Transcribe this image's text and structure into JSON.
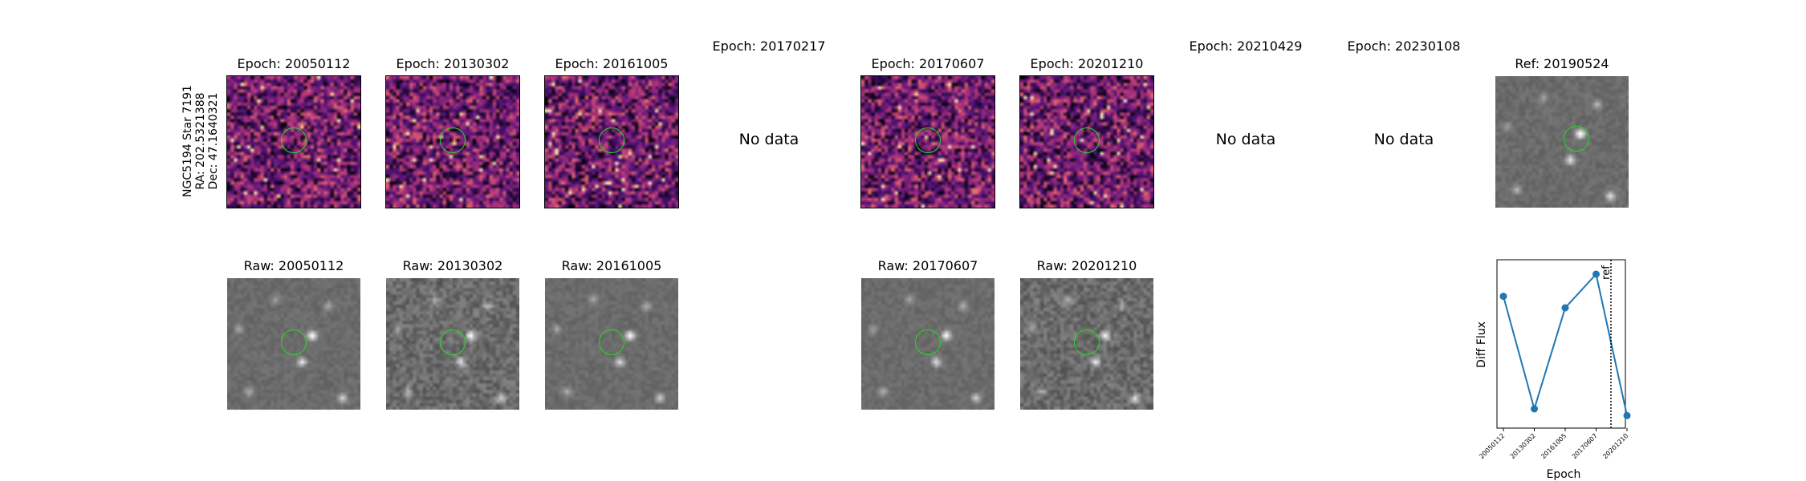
{
  "star": {
    "name": "NGC5194 Star 7191",
    "ra": "RA: 202.5321388",
    "dec": "Dec: 47.1640321"
  },
  "epochs": [
    {
      "diff_title": "Epoch: 20050112",
      "raw_title": "Raw: 20050112",
      "has_data": true
    },
    {
      "diff_title": "Epoch: 20130302",
      "raw_title": "Raw: 20130302",
      "has_data": true
    },
    {
      "diff_title": "Epoch: 20161005",
      "raw_title": "Raw: 20161005",
      "has_data": true
    },
    {
      "diff_title": "Epoch: 20170217",
      "raw_title": "",
      "has_data": false,
      "no_data_label": "No data"
    },
    {
      "diff_title": "Epoch: 20170607",
      "raw_title": "Raw: 20170607",
      "has_data": true
    },
    {
      "diff_title": "Epoch: 20201210",
      "raw_title": "Raw: 20201210",
      "has_data": true
    },
    {
      "diff_title": "Epoch: 20210429",
      "raw_title": "",
      "has_data": false,
      "no_data_label": "No data"
    },
    {
      "diff_title": "Epoch: 20230108",
      "raw_title": "",
      "has_data": false,
      "no_data_label": "No data"
    }
  ],
  "reference": {
    "title": "Ref: 20190524"
  },
  "chart_data": {
    "type": "line",
    "x": [
      "20050112",
      "20130302",
      "20161005",
      "20170607",
      "20201210"
    ],
    "values": [
      0.62,
      -0.55,
      0.5,
      0.85,
      -0.62
    ],
    "ylabel": "Diff Flux",
    "xlabel": "Epoch",
    "reference_line": {
      "label": "ref",
      "position_between": [
        "20170607",
        "20201210"
      ],
      "style": "dotted"
    },
    "yticks_shown": false,
    "grid": false,
    "series_color": "#1f77b4"
  }
}
